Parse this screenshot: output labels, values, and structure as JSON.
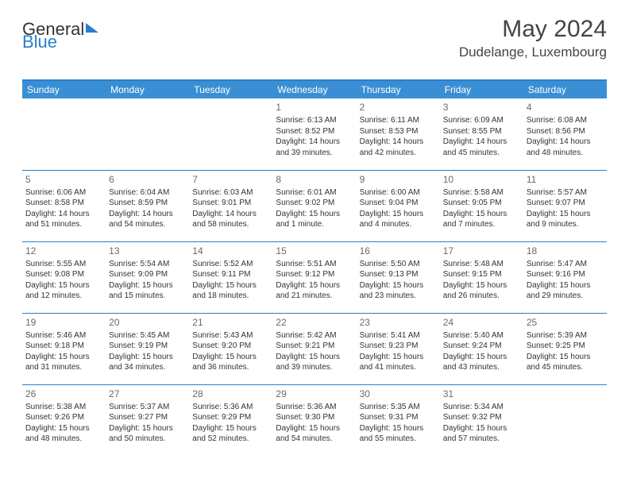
{
  "logo": {
    "part1": "General",
    "part2": "Blue"
  },
  "title": "May 2024",
  "location": "Dudelange, Luxembourg",
  "colors": {
    "header_bg": "#3a8fd4",
    "header_text": "#ffffff",
    "border": "#2a7fcc",
    "text": "#333333",
    "daynum": "#6a6a6a",
    "background": "#ffffff"
  },
  "day_headers": [
    "Sunday",
    "Monday",
    "Tuesday",
    "Wednesday",
    "Thursday",
    "Friday",
    "Saturday"
  ],
  "weeks": [
    [
      {
        "day": "",
        "lines": []
      },
      {
        "day": "",
        "lines": []
      },
      {
        "day": "",
        "lines": []
      },
      {
        "day": "1",
        "lines": [
          "Sunrise: 6:13 AM",
          "Sunset: 8:52 PM",
          "Daylight: 14 hours and 39 minutes."
        ]
      },
      {
        "day": "2",
        "lines": [
          "Sunrise: 6:11 AM",
          "Sunset: 8:53 PM",
          "Daylight: 14 hours and 42 minutes."
        ]
      },
      {
        "day": "3",
        "lines": [
          "Sunrise: 6:09 AM",
          "Sunset: 8:55 PM",
          "Daylight: 14 hours and 45 minutes."
        ]
      },
      {
        "day": "4",
        "lines": [
          "Sunrise: 6:08 AM",
          "Sunset: 8:56 PM",
          "Daylight: 14 hours and 48 minutes."
        ]
      }
    ],
    [
      {
        "day": "5",
        "lines": [
          "Sunrise: 6:06 AM",
          "Sunset: 8:58 PM",
          "Daylight: 14 hours and 51 minutes."
        ]
      },
      {
        "day": "6",
        "lines": [
          "Sunrise: 6:04 AM",
          "Sunset: 8:59 PM",
          "Daylight: 14 hours and 54 minutes."
        ]
      },
      {
        "day": "7",
        "lines": [
          "Sunrise: 6:03 AM",
          "Sunset: 9:01 PM",
          "Daylight: 14 hours and 58 minutes."
        ]
      },
      {
        "day": "8",
        "lines": [
          "Sunrise: 6:01 AM",
          "Sunset: 9:02 PM",
          "Daylight: 15 hours and 1 minute."
        ]
      },
      {
        "day": "9",
        "lines": [
          "Sunrise: 6:00 AM",
          "Sunset: 9:04 PM",
          "Daylight: 15 hours and 4 minutes."
        ]
      },
      {
        "day": "10",
        "lines": [
          "Sunrise: 5:58 AM",
          "Sunset: 9:05 PM",
          "Daylight: 15 hours and 7 minutes."
        ]
      },
      {
        "day": "11",
        "lines": [
          "Sunrise: 5:57 AM",
          "Sunset: 9:07 PM",
          "Daylight: 15 hours and 9 minutes."
        ]
      }
    ],
    [
      {
        "day": "12",
        "lines": [
          "Sunrise: 5:55 AM",
          "Sunset: 9:08 PM",
          "Daylight: 15 hours and 12 minutes."
        ]
      },
      {
        "day": "13",
        "lines": [
          "Sunrise: 5:54 AM",
          "Sunset: 9:09 PM",
          "Daylight: 15 hours and 15 minutes."
        ]
      },
      {
        "day": "14",
        "lines": [
          "Sunrise: 5:52 AM",
          "Sunset: 9:11 PM",
          "Daylight: 15 hours and 18 minutes."
        ]
      },
      {
        "day": "15",
        "lines": [
          "Sunrise: 5:51 AM",
          "Sunset: 9:12 PM",
          "Daylight: 15 hours and 21 minutes."
        ]
      },
      {
        "day": "16",
        "lines": [
          "Sunrise: 5:50 AM",
          "Sunset: 9:13 PM",
          "Daylight: 15 hours and 23 minutes."
        ]
      },
      {
        "day": "17",
        "lines": [
          "Sunrise: 5:48 AM",
          "Sunset: 9:15 PM",
          "Daylight: 15 hours and 26 minutes."
        ]
      },
      {
        "day": "18",
        "lines": [
          "Sunrise: 5:47 AM",
          "Sunset: 9:16 PM",
          "Daylight: 15 hours and 29 minutes."
        ]
      }
    ],
    [
      {
        "day": "19",
        "lines": [
          "Sunrise: 5:46 AM",
          "Sunset: 9:18 PM",
          "Daylight: 15 hours and 31 minutes."
        ]
      },
      {
        "day": "20",
        "lines": [
          "Sunrise: 5:45 AM",
          "Sunset: 9:19 PM",
          "Daylight: 15 hours and 34 minutes."
        ]
      },
      {
        "day": "21",
        "lines": [
          "Sunrise: 5:43 AM",
          "Sunset: 9:20 PM",
          "Daylight: 15 hours and 36 minutes."
        ]
      },
      {
        "day": "22",
        "lines": [
          "Sunrise: 5:42 AM",
          "Sunset: 9:21 PM",
          "Daylight: 15 hours and 39 minutes."
        ]
      },
      {
        "day": "23",
        "lines": [
          "Sunrise: 5:41 AM",
          "Sunset: 9:23 PM",
          "Daylight: 15 hours and 41 minutes."
        ]
      },
      {
        "day": "24",
        "lines": [
          "Sunrise: 5:40 AM",
          "Sunset: 9:24 PM",
          "Daylight: 15 hours and 43 minutes."
        ]
      },
      {
        "day": "25",
        "lines": [
          "Sunrise: 5:39 AM",
          "Sunset: 9:25 PM",
          "Daylight: 15 hours and 45 minutes."
        ]
      }
    ],
    [
      {
        "day": "26",
        "lines": [
          "Sunrise: 5:38 AM",
          "Sunset: 9:26 PM",
          "Daylight: 15 hours and 48 minutes."
        ]
      },
      {
        "day": "27",
        "lines": [
          "Sunrise: 5:37 AM",
          "Sunset: 9:27 PM",
          "Daylight: 15 hours and 50 minutes."
        ]
      },
      {
        "day": "28",
        "lines": [
          "Sunrise: 5:36 AM",
          "Sunset: 9:29 PM",
          "Daylight: 15 hours and 52 minutes."
        ]
      },
      {
        "day": "29",
        "lines": [
          "Sunrise: 5:36 AM",
          "Sunset: 9:30 PM",
          "Daylight: 15 hours and 54 minutes."
        ]
      },
      {
        "day": "30",
        "lines": [
          "Sunrise: 5:35 AM",
          "Sunset: 9:31 PM",
          "Daylight: 15 hours and 55 minutes."
        ]
      },
      {
        "day": "31",
        "lines": [
          "Sunrise: 5:34 AM",
          "Sunset: 9:32 PM",
          "Daylight: 15 hours and 57 minutes."
        ]
      },
      {
        "day": "",
        "lines": []
      }
    ]
  ]
}
